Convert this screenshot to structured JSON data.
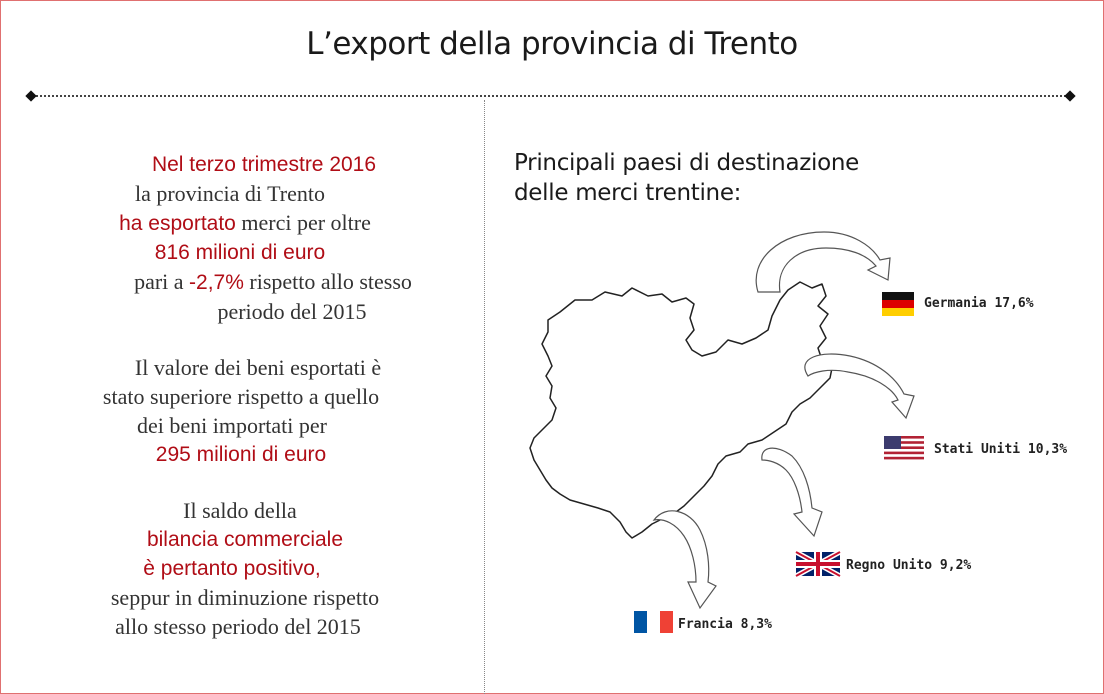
{
  "title": "L’export della provincia di Trento",
  "left_text": {
    "p1": {
      "l1": "Nel terzo trimestre 2016",
      "l2": "la provincia di Trento",
      "l3_red": "ha esportato",
      "l3_rest": " merci per oltre",
      "l4": "816 milioni di euro",
      "l5_pre": "pari a ",
      "l5_red": "-2,7%",
      "l5_rest": " rispetto allo stesso",
      "l6": "periodo del 2015"
    },
    "p2": {
      "l1": "Il valore dei beni esportati è",
      "l2": "stato superiore rispetto a quello",
      "l3": "dei beni importati per",
      "l4": "295 milioni di euro"
    },
    "p3": {
      "l1": "Il saldo della",
      "l2": "bilancia commerciale",
      "l3": "è pertanto positivo,",
      "l4": "seppur in diminuzione rispetto",
      "l5": "allo stesso periodo del 2015"
    }
  },
  "destinations": {
    "title_l1": "Principali paesi di destinazione",
    "title_l2": "delle merci trentine:",
    "items": [
      {
        "country": "Germania",
        "percent": 17.6,
        "label": "Germania 17,6%",
        "flag": "germany-flag-icon"
      },
      {
        "country": "Stati Uniti",
        "percent": 10.3,
        "label": "Stati Uniti 10,3%",
        "flag": "usa-flag-icon"
      },
      {
        "country": "Regno Unito",
        "percent": 9.2,
        "label": "Regno Unito 9,2%",
        "flag": "uk-flag-icon"
      },
      {
        "country": "Francia",
        "percent": 8.3,
        "label": "Francia 8,3%",
        "flag": "france-flag-icon"
      }
    ]
  },
  "colors": {
    "accent": "#b00d16",
    "frame": "#e07070"
  }
}
